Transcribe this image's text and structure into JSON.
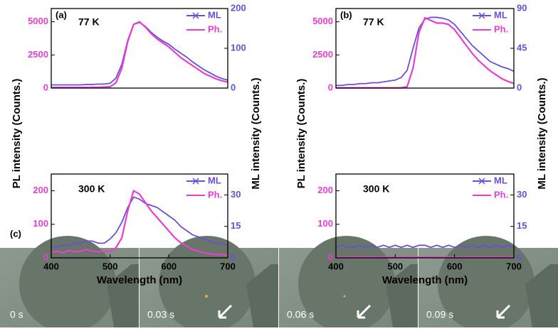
{
  "chart_data": [
    {
      "type": "line",
      "panel_label": "(a)",
      "annotation": "77 K",
      "ylabel": "PL intensity (Counts.)",
      "y2label": "ML intensity (Counts.)",
      "x": [
        400,
        410,
        420,
        430,
        440,
        450,
        460,
        470,
        480,
        490,
        500,
        510,
        520,
        530,
        540,
        550,
        560,
        570,
        580,
        590,
        600,
        610,
        620,
        630,
        640,
        650,
        660,
        670,
        680,
        690,
        700
      ],
      "xlim": [
        400,
        700
      ],
      "ylim": [
        0,
        6000
      ],
      "yticks": [
        0,
        2500,
        5000
      ],
      "y2lim": [
        0,
        200
      ],
      "y2ticks": [
        0,
        100,
        200
      ],
      "series": [
        {
          "name": "ML",
          "color": "#6a4fd8",
          "axis": "y2",
          "values": [
            8,
            8,
            8,
            8,
            8,
            8,
            9,
            9,
            10,
            10,
            12,
            25,
            60,
            120,
            160,
            165,
            155,
            140,
            128,
            118,
            110,
            98,
            88,
            78,
            66,
            56,
            46,
            38,
            30,
            24,
            20
          ]
        },
        {
          "name": "Ph.",
          "color": "#e83fd0",
          "values": [
            50,
            50,
            50,
            50,
            50,
            50,
            50,
            60,
            60,
            80,
            100,
            400,
            1500,
            3500,
            4800,
            5000,
            4600,
            4100,
            3700,
            3400,
            3100,
            2700,
            2300,
            2000,
            1700,
            1400,
            1100,
            900,
            700,
            550,
            450
          ]
        }
      ]
    },
    {
      "type": "line",
      "annotation": "300 K",
      "xlabel": "Wavelength (nm)",
      "x": [
        400,
        410,
        420,
        430,
        440,
        450,
        460,
        470,
        480,
        490,
        500,
        510,
        520,
        530,
        540,
        550,
        560,
        570,
        580,
        590,
        600,
        610,
        620,
        630,
        640,
        650,
        660,
        670,
        680,
        690,
        700
      ],
      "xlim": [
        400,
        700
      ],
      "xticks": [
        400,
        500,
        600,
        700
      ],
      "ylim": [
        0,
        250
      ],
      "yticks": [
        0,
        100,
        200
      ],
      "y2lim": [
        0,
        40
      ],
      "y2ticks": [
        0,
        15,
        30
      ],
      "series": [
        {
          "name": "ML",
          "color": "#6a4fd8",
          "axis": "y2",
          "values": [
            5,
            5,
            6,
            6,
            7,
            7,
            8,
            8,
            7,
            7,
            9,
            12,
            17,
            24,
            29,
            28,
            26,
            25,
            24,
            22,
            20,
            18,
            15,
            13,
            11,
            10,
            9,
            8,
            7,
            7,
            6
          ]
        },
        {
          "name": "Ph.",
          "color": "#e83fd0",
          "values": [
            15,
            20,
            15,
            22,
            18,
            20,
            25,
            20,
            18,
            20,
            20,
            30,
            60,
            140,
            200,
            190,
            165,
            140,
            120,
            100,
            80,
            60,
            45,
            35,
            25,
            20,
            15,
            12,
            10,
            10,
            8
          ]
        }
      ]
    },
    {
      "type": "line",
      "panel_label": "(b)",
      "annotation": "77 K",
      "ylabel": "PL intensity (Counts.)",
      "y2label": "ML intensity (Counts.)",
      "x": [
        400,
        410,
        420,
        430,
        440,
        450,
        460,
        470,
        480,
        490,
        500,
        510,
        520,
        530,
        540,
        550,
        560,
        570,
        580,
        590,
        600,
        610,
        620,
        630,
        640,
        650,
        660,
        670,
        680,
        690,
        700
      ],
      "xlim": [
        400,
        700
      ],
      "ylim": [
        0,
        6000
      ],
      "yticks": [
        0,
        2500,
        5000
      ],
      "y2lim": [
        0,
        90
      ],
      "y2ticks": [
        0,
        45,
        90
      ],
      "series": [
        {
          "name": "ML",
          "color": "#6a4fd8",
          "axis": "y2",
          "values": [
            3,
            3,
            4,
            4,
            5,
            5,
            6,
            6,
            7,
            8,
            9,
            12,
            20,
            45,
            68,
            78,
            80,
            80,
            79,
            77,
            72,
            64,
            56,
            48,
            42,
            36,
            30,
            27,
            24,
            22,
            19
          ]
        },
        {
          "name": "Ph.",
          "color": "#e83fd0",
          "values": [
            20,
            20,
            20,
            20,
            20,
            20,
            20,
            20,
            20,
            20,
            20,
            20,
            100,
            1500,
            4200,
            5300,
            5100,
            4900,
            4900,
            4800,
            4400,
            3800,
            3200,
            2600,
            2100,
            1700,
            1300,
            1000,
            700,
            500,
            350
          ]
        }
      ]
    },
    {
      "type": "line",
      "annotation": "300 K",
      "xlabel": "Wavelength (nm)",
      "x": [
        400,
        410,
        420,
        430,
        440,
        450,
        460,
        470,
        480,
        490,
        500,
        510,
        520,
        530,
        540,
        550,
        560,
        570,
        580,
        590,
        600,
        610,
        620,
        630,
        640,
        650,
        660,
        670,
        680,
        690,
        700
      ],
      "xlim": [
        400,
        700
      ],
      "xticks": [
        400,
        500,
        600,
        700
      ],
      "ylim": [
        0,
        250
      ],
      "yticks": [
        0,
        100,
        200
      ],
      "y2lim": [
        0,
        40
      ],
      "y2ticks": [
        0,
        15,
        30
      ],
      "series": [
        {
          "name": "ML",
          "color": "#6a4fd8",
          "axis": "y2",
          "values": [
            5,
            6,
            5,
            5,
            6,
            5,
            6,
            5,
            6,
            5,
            6,
            5,
            6,
            5,
            6,
            6,
            5,
            6,
            5,
            6,
            5,
            6,
            5,
            6,
            5,
            6,
            5,
            6,
            5,
            6,
            5
          ]
        },
        {
          "name": "Ph.",
          "color": "#e83fd0",
          "values": [
            2,
            2,
            2,
            2,
            2,
            2,
            2,
            2,
            2,
            2,
            2,
            2,
            2,
            2,
            2,
            2,
            2,
            2,
            2,
            2,
            2,
            2,
            2,
            2,
            2,
            2,
            2,
            2,
            2,
            2,
            2
          ]
        }
      ]
    }
  ],
  "panel_c": {
    "label": "(c)",
    "frames": [
      "0 s",
      "0.03 s",
      "0.06 s",
      "0.09 s"
    ]
  }
}
